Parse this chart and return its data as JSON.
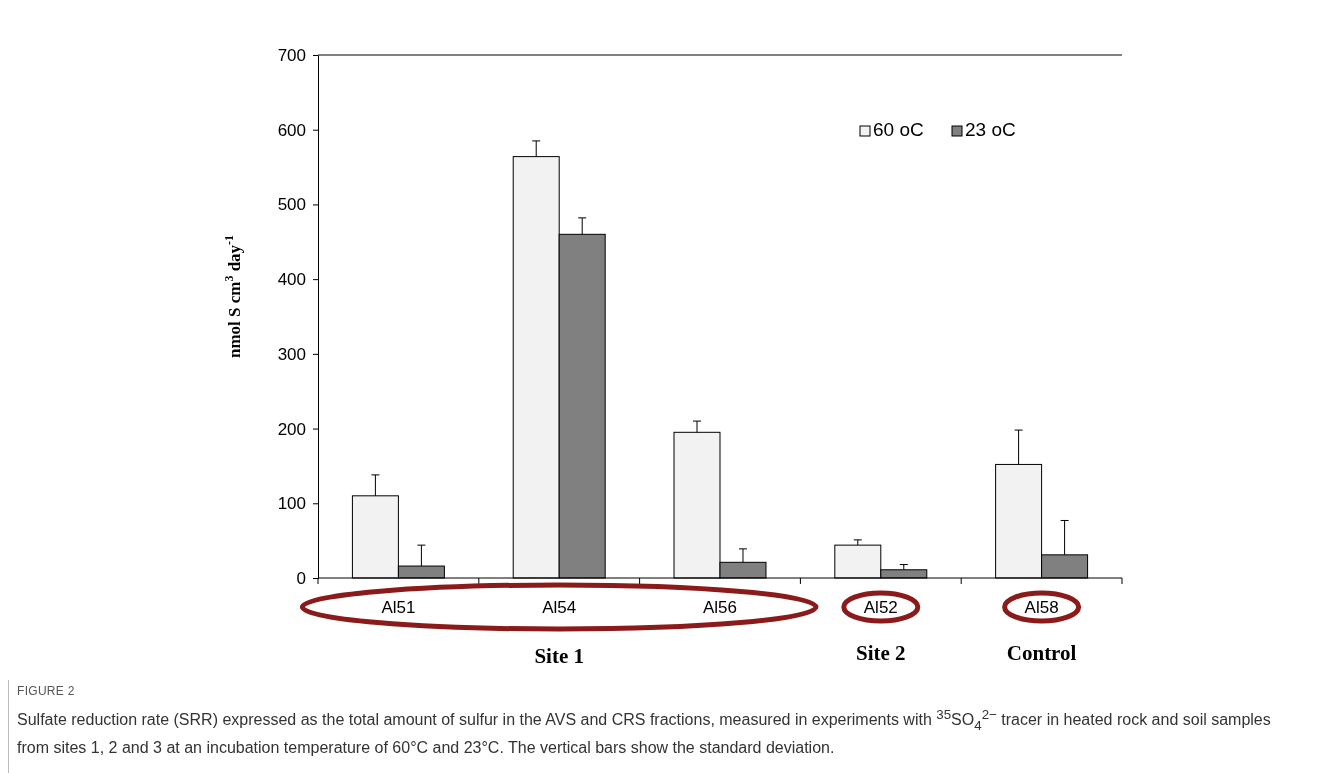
{
  "chart_data": {
    "type": "bar",
    "categories": [
      "Al51",
      "Al54",
      "Al56",
      "Al52",
      "Al58"
    ],
    "ylabel": "nmol S cm$^{3}$ day$^{-1}$",
    "ylim": [
      0,
      700
    ],
    "yticks": [
      0,
      100,
      200,
      300,
      400,
      500,
      600,
      700
    ],
    "grid": false,
    "legend": "top right",
    "series": [
      {
        "name": "60 oC",
        "color": "#f2f2f2",
        "values": [
          110,
          564,
          195,
          44,
          152
        ],
        "errors": [
          [
            110,
            138
          ],
          [
            564,
            585
          ],
          [
            195,
            210
          ],
          [
            44,
            51
          ],
          [
            152,
            198
          ]
        ]
      },
      {
        "name": "23 oC",
        "color": "#808080",
        "values": [
          16,
          460,
          21,
          11,
          31
        ],
        "errors": [
          [
            16,
            44
          ],
          [
            460,
            482
          ],
          [
            21,
            39
          ],
          [
            11,
            18
          ],
          [
            31,
            77
          ]
        ]
      }
    ],
    "annotations": [
      "Site 1",
      "Site 2",
      "Control",
      "FIGURE 2",
      "Sulfate reduction rate (SRR) expressed as the total amount of sulfur in the AVS and CRS fractions, measured in experiments with $^{35}$SO$_{4}$$^{2−}$ tracer in heated rock and soil samples from sites 1, 2 and 3 at an incubation temperature of 60°C and 23°C. The vertical bars show the standard deviation."
    ]
  }
}
